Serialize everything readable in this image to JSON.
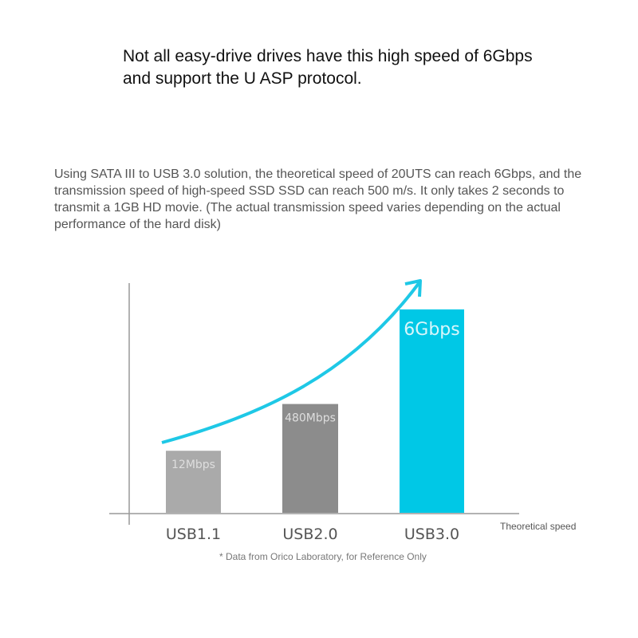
{
  "headline": "Not all easy-drive drives have this high speed of 6Gbps and support the U ASP protocol.",
  "description": "Using SATA III to USB 3.0 solution, the theoretical speed of 20UTS can reach 6Gbps, and the transmission speed of high-speed SSD SSD can reach 500 m/s. It only takes 2 seconds to transmit a 1GB HD movie. (The actual transmission speed varies depending on the actual performance of the hard disk)",
  "chart_data": {
    "type": "bar",
    "categories": [
      "USB1.1",
      "USB2.0",
      "USB3.0"
    ],
    "values": [
      12,
      480,
      6000
    ],
    "units": "Mbps",
    "data_labels": [
      "12Mbps",
      "480Mbps",
      "6Gbps"
    ],
    "xlabel": "Theoretical speed",
    "ylabel": "",
    "colors": [
      "#aaaaaa",
      "#8c8c8c",
      "#00c8e6"
    ],
    "trend_arrow_color": "#1ec8e6",
    "footnote": "* Data from Orico Laboratory, for Reference Only"
  }
}
